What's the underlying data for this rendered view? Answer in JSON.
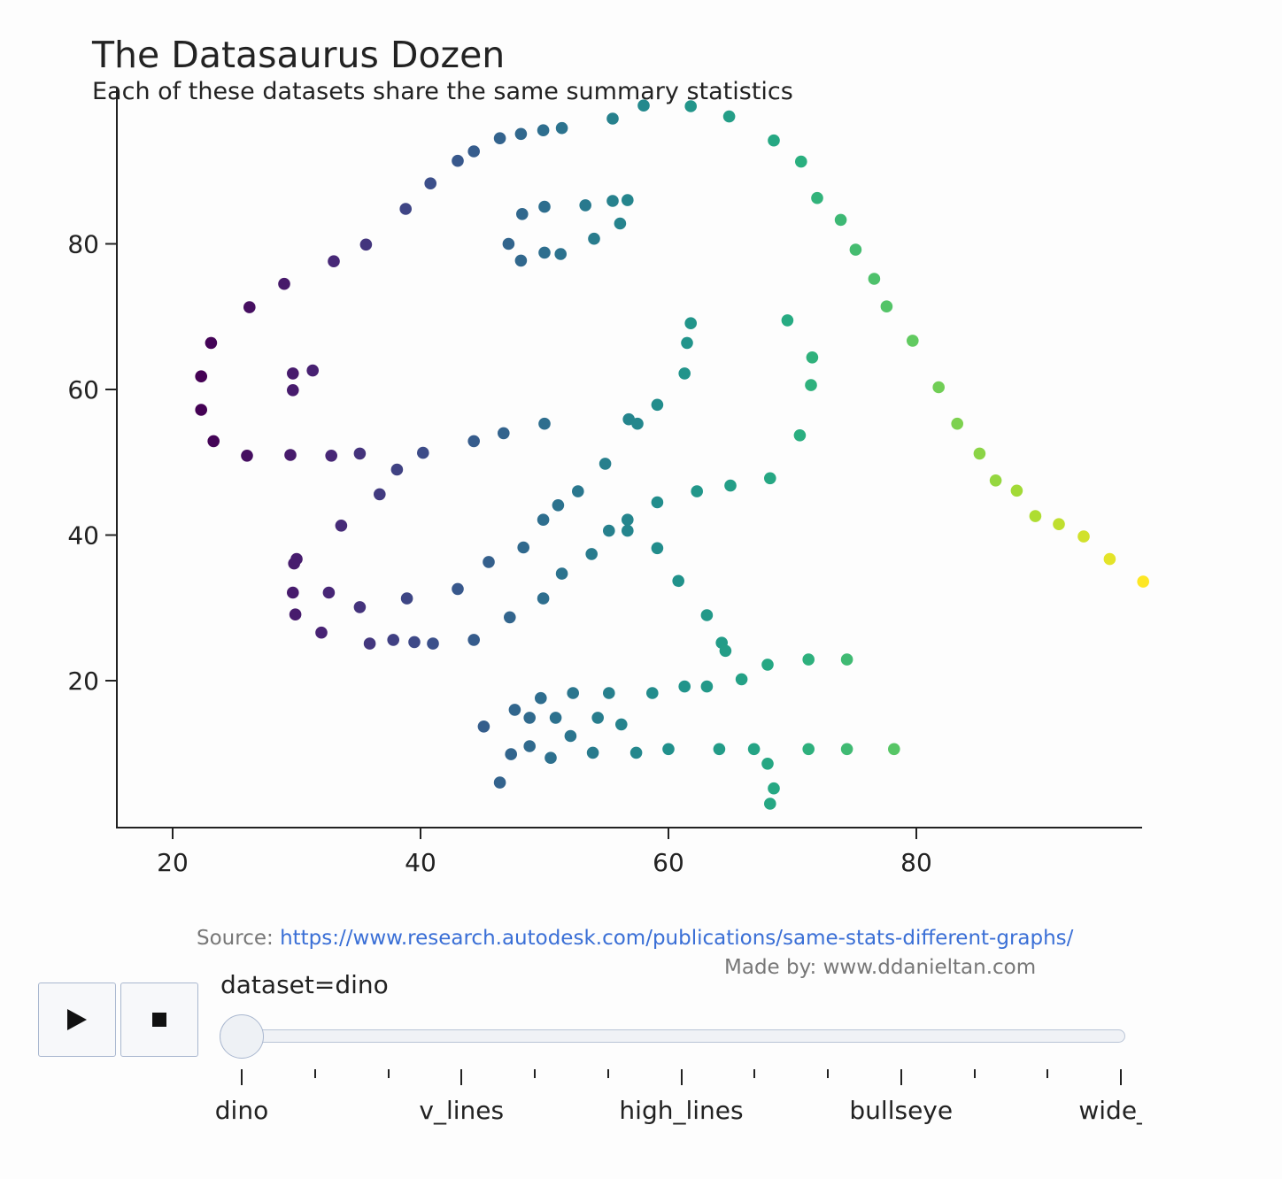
{
  "title": "The Datasaurus Dozen",
  "subtitle": "Each of these datasets share the same summary statistics",
  "source": {
    "prefix": "Source: ",
    "url_text": "https://www.research.autodesk.com/publications/same-stats-different-graphs/"
  },
  "made_by": "Made by: www.ddanieltan.com",
  "controls": {
    "play_icon": "play-icon",
    "stop_icon": "stop-icon"
  },
  "slider": {
    "current_label": "dataset=dino",
    "current_index": 0,
    "steps": [
      "dino",
      "",
      "",
      "v_lines",
      "",
      "",
      "high_lines",
      "",
      "",
      "bullseye",
      "",
      "",
      "wide_li"
    ]
  },
  "colors": {
    "low": "#440154",
    "mid": "#21918c",
    "high": "#fde725",
    "axis": "#222222",
    "link": "#3a6fd6"
  },
  "chart_data": {
    "type": "scatter",
    "title": "The Datasaurus Dozen",
    "subtitle": "Each of these datasets share the same summary statistics",
    "xlabel": "",
    "ylabel": "",
    "xlim": [
      15.5,
      98.3
    ],
    "ylim": [
      0,
      99
    ],
    "xticks": [
      20,
      40,
      60,
      80
    ],
    "yticks": [
      20,
      40,
      60,
      80
    ],
    "grid": false,
    "color_by": "x",
    "series": [
      {
        "name": "dino",
        "points": [
          [
            22.3,
            61.8
          ],
          [
            22.3,
            57.2
          ],
          [
            23.1,
            66.4
          ],
          [
            23.3,
            52.9
          ],
          [
            26.2,
            71.3
          ],
          [
            26.0,
            50.9
          ],
          [
            29.0,
            74.5
          ],
          [
            29.5,
            51.0
          ],
          [
            29.7,
            62.2
          ],
          [
            29.7,
            59.9
          ],
          [
            31.3,
            62.6
          ],
          [
            32.8,
            50.9
          ],
          [
            33.0,
            77.6
          ],
          [
            35.1,
            51.2
          ],
          [
            35.6,
            79.9
          ],
          [
            38.1,
            49.0
          ],
          [
            38.8,
            84.8
          ],
          [
            36.7,
            45.6
          ],
          [
            33.6,
            41.3
          ],
          [
            40.2,
            51.3
          ],
          [
            40.8,
            88.3
          ],
          [
            43.0,
            91.4
          ],
          [
            44.3,
            92.7
          ],
          [
            44.3,
            52.9
          ],
          [
            46.4,
            94.5
          ],
          [
            46.7,
            54.0
          ],
          [
            48.1,
            95.1
          ],
          [
            49.9,
            95.6
          ],
          [
            50.0,
            55.3
          ],
          [
            51.4,
            95.9
          ],
          [
            55.5,
            97.2
          ],
          [
            58.0,
            99.0
          ],
          [
            61.8,
            98.9
          ],
          [
            64.9,
            97.5
          ],
          [
            68.5,
            94.2
          ],
          [
            70.7,
            91.3
          ],
          [
            72.0,
            86.3
          ],
          [
            73.9,
            83.3
          ],
          [
            75.1,
            79.2
          ],
          [
            76.6,
            75.2
          ],
          [
            77.6,
            71.4
          ],
          [
            79.7,
            66.7
          ],
          [
            81.8,
            60.3
          ],
          [
            83.3,
            55.3
          ],
          [
            85.1,
            51.2
          ],
          [
            86.4,
            47.5
          ],
          [
            88.1,
            46.1
          ],
          [
            89.6,
            42.6
          ],
          [
            91.5,
            41.5
          ],
          [
            93.5,
            39.8
          ],
          [
            95.6,
            36.7
          ],
          [
            98.3,
            33.6
          ],
          [
            47.1,
            80.0
          ],
          [
            48.2,
            84.1
          ],
          [
            48.1,
            77.7
          ],
          [
            50.0,
            85.1
          ],
          [
            50.0,
            78.8
          ],
          [
            51.3,
            78.6
          ],
          [
            53.3,
            85.3
          ],
          [
            54.0,
            80.7
          ],
          [
            55.5,
            85.9
          ],
          [
            56.1,
            82.8
          ],
          [
            56.7,
            86.0
          ],
          [
            29.8,
            36.1
          ],
          [
            30.0,
            36.7
          ],
          [
            29.7,
            32.1
          ],
          [
            29.9,
            29.1
          ],
          [
            32.6,
            32.1
          ],
          [
            32.0,
            26.6
          ],
          [
            35.1,
            30.1
          ],
          [
            35.9,
            25.1
          ],
          [
            37.8,
            25.6
          ],
          [
            38.9,
            31.3
          ],
          [
            39.5,
            25.3
          ],
          [
            41.0,
            25.1
          ],
          [
            43.0,
            32.6
          ],
          [
            44.3,
            25.6
          ],
          [
            45.5,
            36.3
          ],
          [
            47.2,
            28.7
          ],
          [
            48.3,
            38.3
          ],
          [
            49.9,
            31.3
          ],
          [
            49.9,
            42.1
          ],
          [
            51.1,
            44.1
          ],
          [
            51.4,
            34.7
          ],
          [
            52.7,
            46.0
          ],
          [
            53.8,
            37.4
          ],
          [
            54.9,
            49.8
          ],
          [
            55.2,
            40.6
          ],
          [
            56.7,
            42.1
          ],
          [
            56.7,
            40.6
          ],
          [
            56.8,
            55.9
          ],
          [
            57.5,
            55.3
          ],
          [
            59.1,
            57.9
          ],
          [
            61.3,
            62.2
          ],
          [
            61.5,
            66.4
          ],
          [
            61.8,
            69.1
          ],
          [
            59.1,
            44.5
          ],
          [
            59.1,
            38.2
          ],
          [
            60.8,
            33.7
          ],
          [
            62.3,
            46.0
          ],
          [
            63.1,
            29.0
          ],
          [
            64.3,
            25.2
          ],
          [
            64.6,
            24.1
          ],
          [
            65.0,
            46.8
          ],
          [
            68.2,
            47.8
          ],
          [
            69.6,
            69.5
          ],
          [
            70.6,
            53.7
          ],
          [
            71.5,
            60.6
          ],
          [
            71.6,
            64.4
          ],
          [
            45.1,
            13.7
          ],
          [
            46.4,
            6.0
          ],
          [
            47.3,
            9.9
          ],
          [
            47.6,
            16.0
          ],
          [
            48.8,
            14.9
          ],
          [
            48.8,
            11.0
          ],
          [
            49.7,
            17.6
          ],
          [
            50.5,
            9.4
          ],
          [
            50.9,
            14.9
          ],
          [
            52.1,
            12.4
          ],
          [
            52.3,
            18.3
          ],
          [
            53.9,
            10.1
          ],
          [
            54.3,
            14.9
          ],
          [
            55.2,
            18.3
          ],
          [
            56.2,
            14.0
          ],
          [
            57.4,
            10.1
          ],
          [
            58.7,
            18.3
          ],
          [
            60.0,
            10.6
          ],
          [
            61.3,
            19.2
          ],
          [
            63.1,
            19.2
          ],
          [
            64.1,
            10.6
          ],
          [
            65.9,
            20.2
          ],
          [
            66.9,
            10.6
          ],
          [
            68.0,
            22.2
          ],
          [
            68.0,
            8.6
          ],
          [
            68.5,
            5.2
          ],
          [
            68.2,
            3.1
          ],
          [
            71.3,
            10.6
          ],
          [
            71.3,
            22.9
          ],
          [
            74.4,
            10.6
          ],
          [
            74.4,
            22.9
          ],
          [
            78.2,
            10.6
          ]
        ]
      }
    ]
  }
}
